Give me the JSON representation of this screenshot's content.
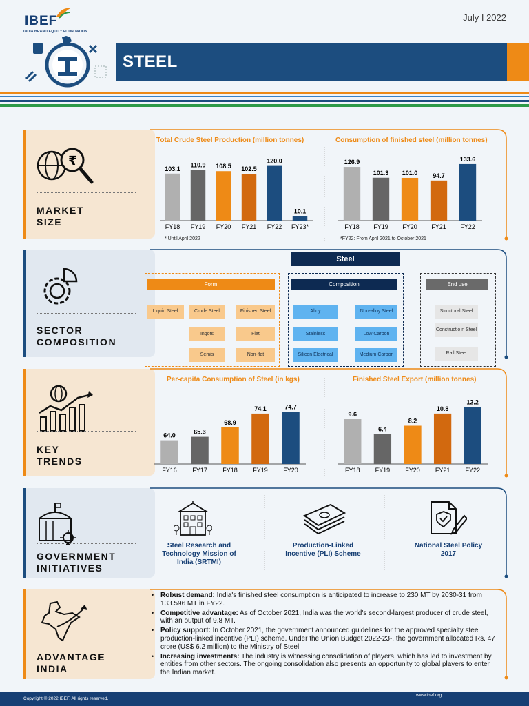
{
  "header": {
    "logo": "IBEF",
    "logo_sub": "INDIA BRAND EQUITY FOUNDATION",
    "date": "July I 2022",
    "title": "STEEL"
  },
  "colors": {
    "navy": "#1c4d7f",
    "orange": "#ee8a16",
    "dark_orange": "#d2690f",
    "grey_light": "#b0b0b0",
    "grey_dark": "#666666",
    "green": "#2e9a48"
  },
  "sections": {
    "market_size": {
      "label": "MARKET\nSIZE",
      "icon": "globe-rupee-magnifier-icon"
    },
    "sector_composition": {
      "label": "SECTOR\nCOMPOSITION",
      "icon": "gear-pie-icon"
    },
    "key_trends": {
      "label": "KEY\nTRENDS",
      "icon": "globe-growth-chart-icon"
    },
    "government_initiatives": {
      "label": "GOVERNMENT\nINITIATIVES",
      "icon": "government-building-bulb-icon"
    },
    "advantage_india": {
      "label": "ADVANTAGE\nINDIA",
      "icon": "india-map-icon"
    }
  },
  "chart_data": [
    {
      "type": "bar",
      "title": "Total Crude Steel Production (million tonnes)",
      "categories": [
        "FY18",
        "FY19",
        "FY20",
        "FY21",
        "FY22",
        "FY23*"
      ],
      "values": [
        103.1,
        110.9,
        108.5,
        102.5,
        120.0,
        10.1
      ],
      "value_labels": [
        "103.1",
        "110.9",
        "108.5",
        "102.5",
        "120.0",
        "10.1"
      ],
      "bar_colors": [
        "#b0b0b0",
        "#666666",
        "#ee8a16",
        "#d2690f",
        "#1c4d7f",
        "#1c4d7f"
      ],
      "note": "* Until April 2022",
      "ylim": [
        0,
        130
      ]
    },
    {
      "type": "bar",
      "title": "Consumption of finished steel (million tonnes)",
      "categories": [
        "FY18",
        "FY19",
        "FY20",
        "FY21",
        "FY22"
      ],
      "values": [
        126.9,
        101.3,
        101.0,
        94.7,
        133.6
      ],
      "value_labels": [
        "126.9",
        "101.3",
        "101.0",
        "94.7",
        "133.6"
      ],
      "bar_colors": [
        "#b0b0b0",
        "#666666",
        "#ee8a16",
        "#d2690f",
        "#1c4d7f"
      ],
      "note": "*FY22: From April 2021 to October 2021",
      "ylim": [
        0,
        140
      ]
    },
    {
      "type": "bar",
      "title": "Per-capita Consumption of Steel (in kgs)",
      "categories": [
        "FY16",
        "FY17",
        "FY18",
        "FY19",
        "FY20"
      ],
      "values": [
        64.0,
        65.3,
        68.9,
        74.1,
        74.7
      ],
      "value_labels": [
        "64.0",
        "65.3",
        "68.9",
        "74.1",
        "74.7"
      ],
      "bar_colors": [
        "#b0b0b0",
        "#666666",
        "#ee8a16",
        "#d2690f",
        "#1c4d7f"
      ],
      "ylim": [
        55,
        78
      ]
    },
    {
      "type": "bar",
      "title": "Finished Steel Export (million tonnes)",
      "categories": [
        "FY18",
        "FY19",
        "FY20",
        "FY21",
        "FY22"
      ],
      "values": [
        9.6,
        6.4,
        8.2,
        10.8,
        12.2
      ],
      "value_labels": [
        "9.6",
        "6.4",
        "8.2",
        "10.8",
        "12.2"
      ],
      "bar_colors": [
        "#b0b0b0",
        "#666666",
        "#ee8a16",
        "#d2690f",
        "#1c4d7f"
      ],
      "ylim": [
        0,
        13
      ]
    }
  ],
  "composition": {
    "title": "Steel",
    "form": {
      "title": "Form",
      "items": [
        "Liquid Steel",
        "Crude Steel",
        "Finished Steel",
        "Ingots",
        "Flat",
        "Semis",
        "Non-flat"
      ]
    },
    "comp": {
      "title": "Composition",
      "items": [
        "Alloy",
        "Non-alloy Steel",
        "Stainless",
        "Low Carbon",
        "Silicon Electrical",
        "Medium Carbon"
      ]
    },
    "end_use": {
      "title": "End use",
      "items": [
        "Structural Steel",
        "Constructio n Steel",
        "Rail Steel"
      ]
    }
  },
  "government": [
    {
      "label": "Steel Research and Technology Mission of India (SRTMI)",
      "icon": "institution-building-icon"
    },
    {
      "label": "Production-Linked Incentive (PLI) Scheme",
      "icon": "money-stack-icon"
    },
    {
      "label": "National Steel Policy 2017",
      "icon": "policy-document-pen-icon"
    }
  ],
  "advantage": [
    {
      "head": "Robust demand:",
      "text": " India's finished steel consumption is anticipated to increase to 230 MT by 2030-31 from 133.596 MT in FY22."
    },
    {
      "head": "Competitive advantage:",
      "text": " As of October 2021, India was the world's second-largest producer of crude steel, with an output of 9.8 MT."
    },
    {
      "head": "Policy support:",
      "text": " In October 2021, the government announced guidelines for the approved specialty steel production-linked incentive (PLI) scheme. Under the Union Budget 2022-23-, the government allocated Rs. 47 crore (US$ 6.2 million) to the Ministry of Steel."
    },
    {
      "head": "Increasing investments:",
      "text": " The industry is witnessing consolidation of players, which has led to investment by entities from other sectors. The ongoing consolidation also presents an opportunity to global players to enter the Indian market."
    }
  ],
  "footer": {
    "copyright": "Copyright © 2022 IBEF. All rights reserved.",
    "url": "www.ibef.org"
  }
}
